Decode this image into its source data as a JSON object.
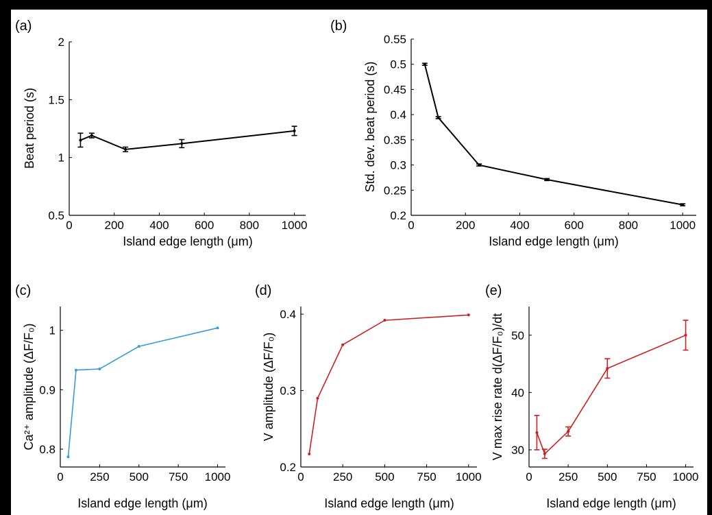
{
  "chart_data": [
    {
      "panel": "(a)",
      "type": "line",
      "xlabel": "Island edge length (μm)",
      "ylabel": "Beat period (s)",
      "xlim": [
        0,
        1050
      ],
      "ylim": [
        0.5,
        2
      ],
      "xticks": [
        0,
        200,
        400,
        600,
        800,
        1000
      ],
      "yticks": [
        0.5,
        1,
        1.5,
        2
      ],
      "color": "#000000",
      "error_bars": true,
      "series": [
        {
          "x": [
            50,
            100,
            250,
            500,
            1000
          ],
          "y": [
            1.15,
            1.19,
            1.07,
            1.12,
            1.23
          ],
          "err": [
            0.06,
            0.02,
            0.02,
            0.035,
            0.04
          ]
        }
      ]
    },
    {
      "panel": "(b)",
      "type": "line",
      "xlabel": "Island edge length (μm)",
      "ylabel": "Std. dev. beat period (s)",
      "xlim": [
        0,
        1050
      ],
      "ylim": [
        0.2,
        0.55
      ],
      "xticks": [
        0,
        200,
        400,
        600,
        800,
        1000
      ],
      "yticks": [
        0.2,
        0.25,
        0.3,
        0.35,
        0.4,
        0.45,
        0.5,
        0.55
      ],
      "color": "#000000",
      "error_bars": true,
      "series": [
        {
          "x": [
            50,
            100,
            250,
            500,
            1000
          ],
          "y": [
            0.5,
            0.394,
            0.3,
            0.271,
            0.221
          ],
          "err": [
            0.002,
            0.002,
            0.002,
            0.002,
            0.002
          ]
        }
      ]
    },
    {
      "panel": "(c)",
      "type": "line",
      "xlabel": "Island edge length (μm)",
      "ylabel": "Ca²⁺ amplitude (ΔF/F₀)",
      "xlim": [
        0,
        1050
      ],
      "ylim": [
        0.77,
        1.04
      ],
      "xticks": [
        0,
        250,
        500,
        750,
        1000
      ],
      "yticks": [
        0.8,
        0.9,
        1
      ],
      "color": "#3a9ad9",
      "error_bars": false,
      "series": [
        {
          "x": [
            50,
            100,
            250,
            500,
            1000
          ],
          "y": [
            0.787,
            0.933,
            0.935,
            0.973,
            1.004
          ]
        }
      ]
    },
    {
      "panel": "(d)",
      "type": "line",
      "xlabel": "Island edge length (μm)",
      "ylabel": "V amplitude (ΔF/F₀)",
      "xlim": [
        0,
        1050
      ],
      "ylim": [
        0.2,
        0.41
      ],
      "xticks": [
        0,
        250,
        500,
        750,
        1000
      ],
      "yticks": [
        0.2,
        0.3,
        0.4
      ],
      "color": "#cc1f1f",
      "error_bars": false,
      "series": [
        {
          "x": [
            50,
            100,
            250,
            500,
            1000
          ],
          "y": [
            0.217,
            0.29,
            0.36,
            0.392,
            0.399
          ]
        }
      ]
    },
    {
      "panel": "(e)",
      "type": "line",
      "xlabel": "Island edge length (μm)",
      "ylabel": "V max rise rate d(ΔF/F₀)/dt",
      "xlim": [
        0,
        1050
      ],
      "ylim": [
        27,
        55
      ],
      "xticks": [
        0,
        250,
        500,
        750,
        1000
      ],
      "yticks": [
        30,
        40,
        50
      ],
      "color": "#cc1f1f",
      "error_bars": true,
      "series": [
        {
          "x": [
            50,
            100,
            250,
            500,
            1000
          ],
          "y": [
            33,
            29.3,
            33.2,
            44.2,
            50
          ],
          "err": [
            3.0,
            0.8,
            0.8,
            1.7,
            2.6
          ]
        }
      ]
    }
  ]
}
